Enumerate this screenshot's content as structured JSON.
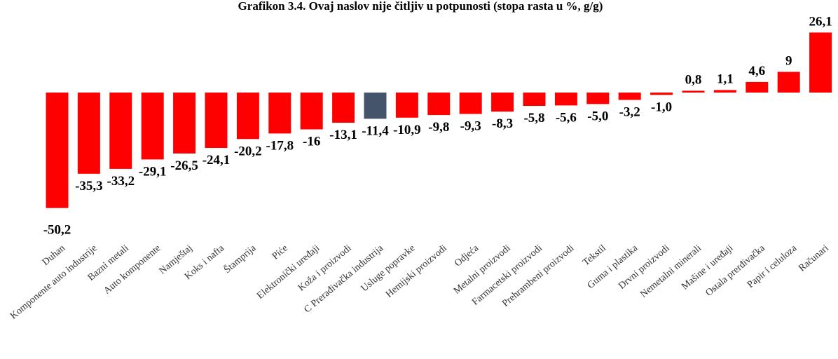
{
  "chart_data": {
    "type": "bar",
    "title": "Grafikon 3.4. Ovaj naslov nije čitljiv u potpunosti (stopa rasta u %, g/g)",
    "categories": [
      "Duhan",
      "Komponente auto industrije",
      "Bazni metali",
      "Auto komponente",
      "Namještaj",
      "Koks i nafta",
      "Štamprija",
      "Piće",
      "Elektronički uređaji",
      "Koža i proizvodi",
      "C Prerađivačka industrija",
      "Usluge popravke",
      "Hemijski proizvodi",
      "Odjeća",
      "Metalni proizvodi",
      "Farmacetski proizvodi",
      "Prehrambeni proizvodi",
      "Tekstil",
      "Guma i plastika",
      "Drvni proizvodi",
      "Nemetalni minerali",
      "Mašine i uređaji",
      "Ostala prerđivačka",
      "Papir i celuloza",
      "Računari"
    ],
    "values": [
      -50.2,
      -35.3,
      -33.2,
      -29.1,
      -26.5,
      -24.1,
      -20.2,
      -17.8,
      -16,
      -13.1,
      -11.4,
      -10.9,
      -9.8,
      -9.3,
      -8.3,
      -5.8,
      -5.6,
      -5.0,
      -3.2,
      -1.0,
      0.8,
      1.1,
      4.6,
      9,
      26.1
    ],
    "labels": [
      "-50,2",
      "-35,3",
      "-33,2",
      "-29,1",
      "-26,5",
      "-24,1",
      "-20,2",
      "-17,8",
      "-16",
      "-13,1",
      "-11,4",
      "-10,9",
      "-9,8",
      "-9,3",
      "-8,3",
      "-5,8",
      "-5,6",
      "-5,0",
      "-3,2",
      "-1,0",
      "0,8",
      "1,1",
      "4,6",
      "9",
      "26,1"
    ],
    "highlight_index": 10,
    "colors": {
      "bar": "#ff0000",
      "highlight": "#44546a"
    },
    "xlabel": "",
    "ylabel": "",
    "ylim": [
      -50.2,
      26.1
    ],
    "grid": false,
    "legend": "none"
  }
}
